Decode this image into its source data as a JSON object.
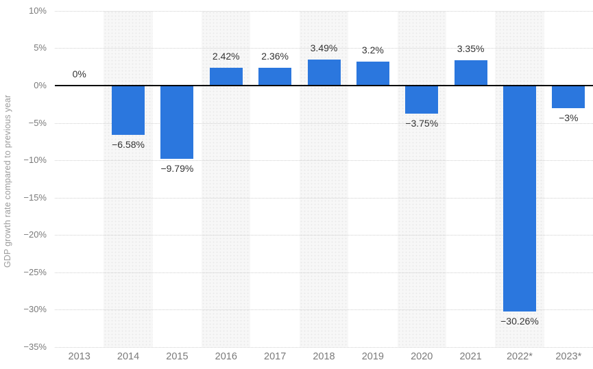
{
  "chart_data": {
    "type": "bar",
    "categories": [
      "2013",
      "2014",
      "2015",
      "2016",
      "2017",
      "2018",
      "2019",
      "2020",
      "2021",
      "2022*",
      "2023*"
    ],
    "values": [
      0,
      -6.58,
      -9.79,
      2.42,
      2.36,
      3.49,
      3.2,
      -3.75,
      3.35,
      -30.26,
      -3
    ],
    "value_labels": [
      "0%",
      "−6.58%",
      "−9.79%",
      "2.42%",
      "2.36%",
      "3.49%",
      "3.2%",
      "−3.75%",
      "3.35%",
      "−30.26%",
      "−3%"
    ],
    "title": "",
    "xlabel": "",
    "ylabel": "GDP growth rate compared to previous year",
    "ylim": [
      -35,
      10
    ],
    "yticks": [
      {
        "value": 10,
        "label": "10%"
      },
      {
        "value": 5,
        "label": "5%"
      },
      {
        "value": 0,
        "label": "0%"
      },
      {
        "value": -5,
        "label": "−5%"
      },
      {
        "value": -10,
        "label": "−10%"
      },
      {
        "value": -15,
        "label": "−15%"
      },
      {
        "value": -20,
        "label": "−20%"
      },
      {
        "value": -25,
        "label": "−25%"
      },
      {
        "value": -30,
        "label": "−30%"
      },
      {
        "value": -35,
        "label": "−35%"
      }
    ],
    "grid": "dotted horizontal gridlines, solid black zero line",
    "legend": "none",
    "colors": {
      "bar": "#2b77de",
      "band": "#f7f7f7",
      "gridline": "#cfcfcf",
      "zero_line": "#000000",
      "value_label_text": "#333333",
      "axis_text": "#7a7a7a",
      "axis_title_text": "#9b9b9b"
    },
    "band_pattern": "alternating dotted light-gray vertical bands behind every second category (2014, 2016, 2018, 2020, 2022*)"
  }
}
